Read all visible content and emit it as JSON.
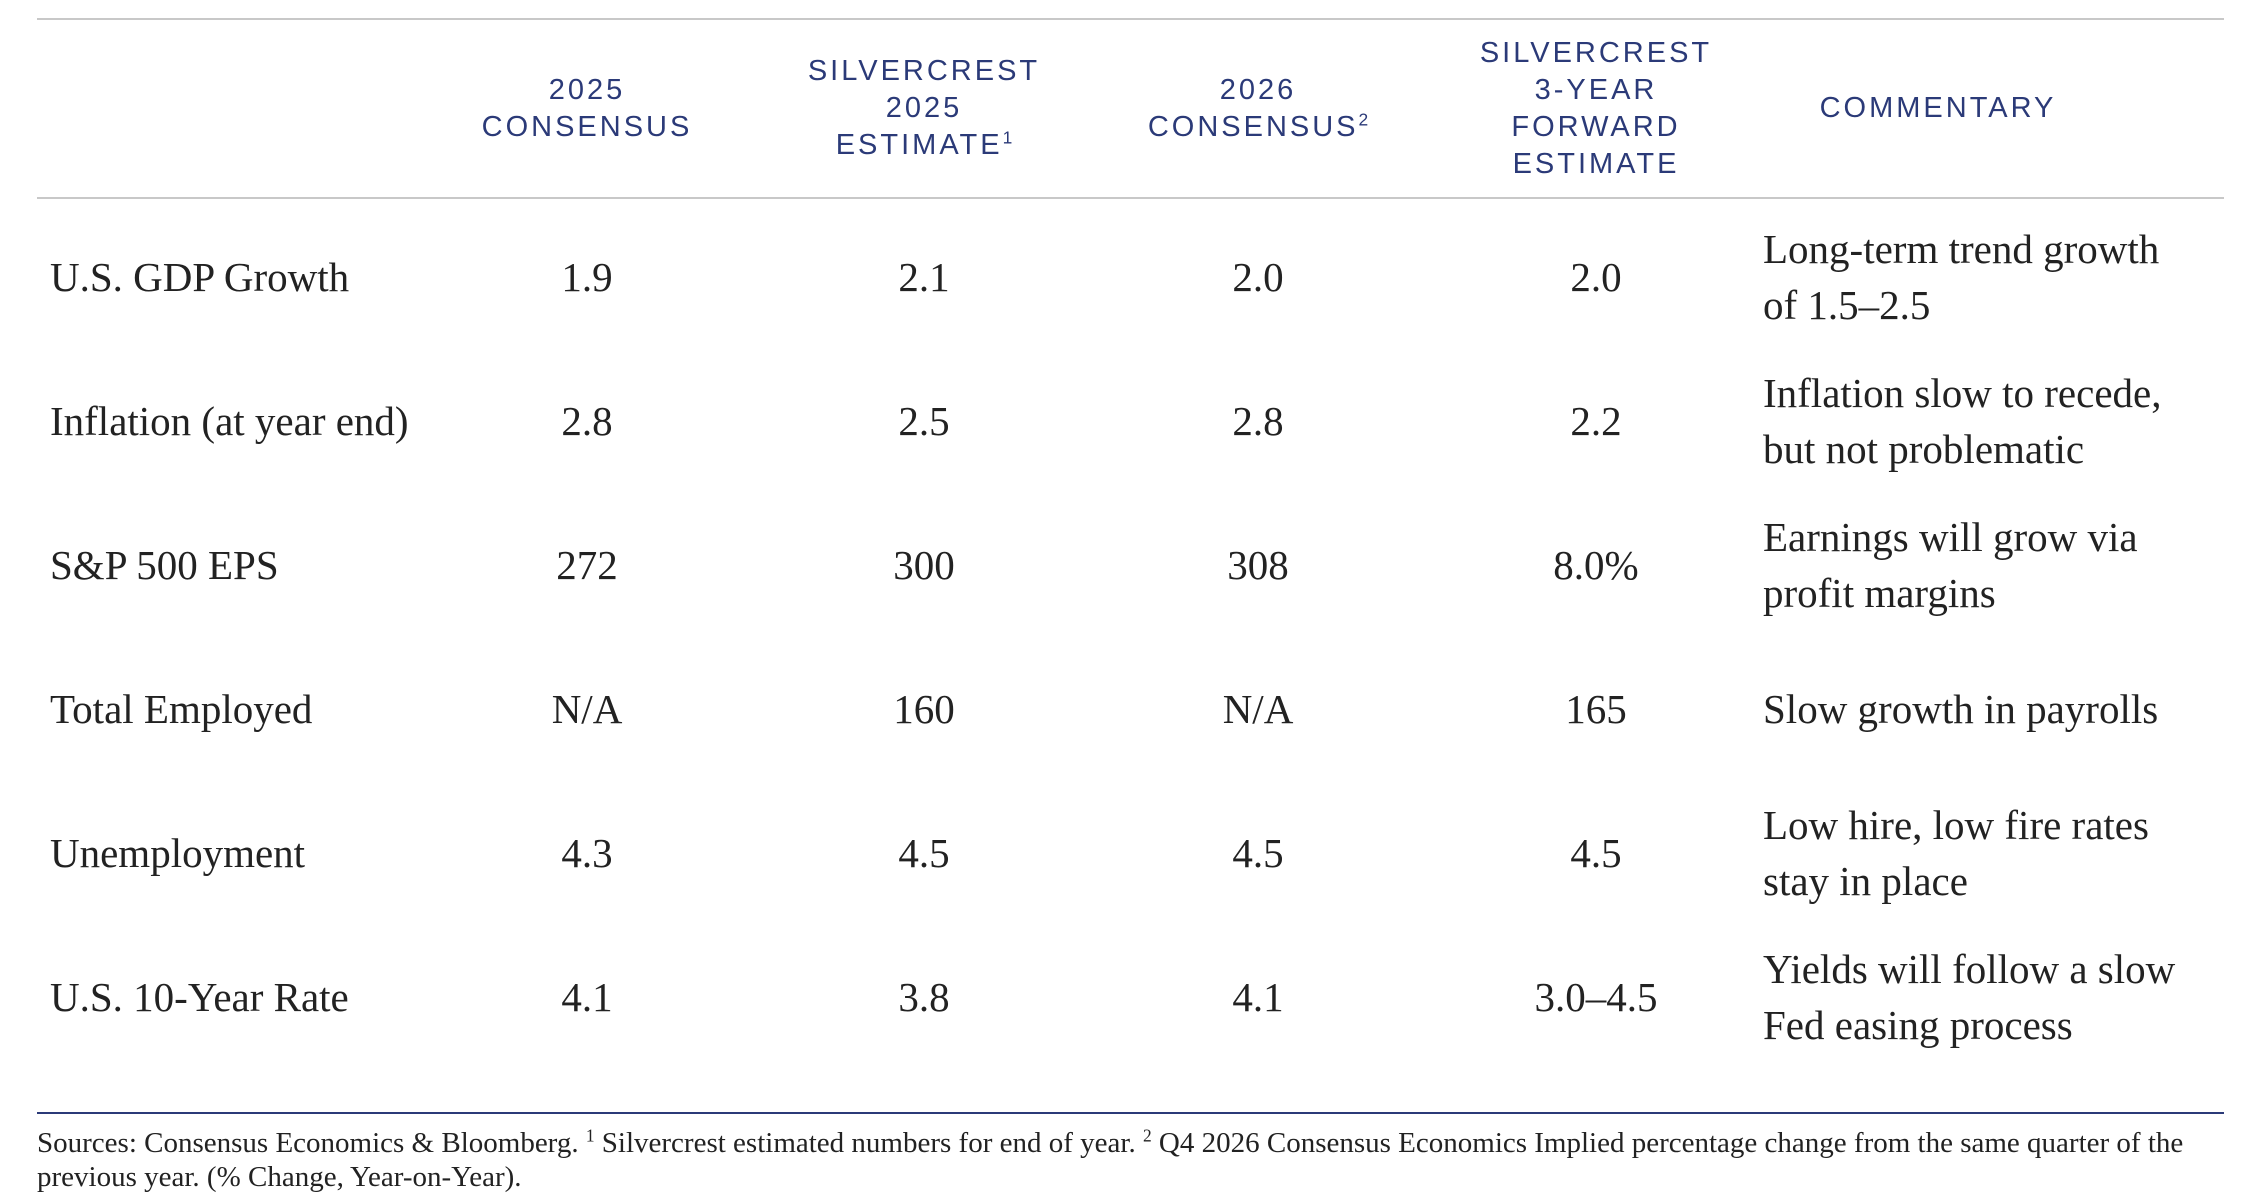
{
  "table": {
    "headers": [
      {
        "lines": [
          "2025",
          "CONSENSUS"
        ]
      },
      {
        "lines": [
          "SILVERCREST",
          "2025",
          "ESTIMATE"
        ],
        "sup": "1"
      },
      {
        "lines": [
          "2026",
          "CONSENSUS"
        ],
        "sup": "2"
      },
      {
        "lines": [
          "SILVERCREST",
          "3-YEAR",
          "FORWARD",
          "ESTIMATE"
        ]
      },
      {
        "lines": [
          "COMMENTARY"
        ]
      }
    ],
    "rows": [
      {
        "label": "U.S. GDP Growth",
        "values": [
          "1.9",
          "2.1",
          "2.0",
          "2.0"
        ],
        "commentary": [
          "Long-term trend growth",
          "of 1.5–2.5"
        ]
      },
      {
        "label": "Inflation (at year end)",
        "values": [
          "2.8",
          "2.5",
          "2.8",
          "2.2"
        ],
        "commentary": [
          "Inflation slow to recede,",
          "but not problematic"
        ]
      },
      {
        "label": "S&P 500 EPS",
        "values": [
          "272",
          "300",
          "308",
          "8.0%"
        ],
        "commentary": [
          "Earnings will grow via",
          "profit margins"
        ]
      },
      {
        "label": "Total Employed",
        "values": [
          "N/A",
          "160",
          "N/A",
          "165"
        ],
        "commentary": [
          "Slow growth in payrolls"
        ]
      },
      {
        "label": "Unemployment",
        "values": [
          "4.3",
          "4.5",
          "4.5",
          "4.5"
        ],
        "commentary": [
          "Low hire, low fire rates",
          "stay in place"
        ]
      },
      {
        "label": "U.S. 10-Year Rate",
        "values": [
          "4.1",
          "3.8",
          "4.1",
          "3.0–4.5"
        ],
        "commentary": [
          "Yields will follow a slow",
          "Fed easing process"
        ]
      }
    ]
  },
  "footnote": [
    {
      "text": "Sources: Consensus Economics & Bloomberg. "
    },
    {
      "sup": "1"
    },
    {
      "text": " Silvercrest estimated numbers for end of year. "
    },
    {
      "sup": "2"
    },
    {
      "text": " Q4 2026 Consensus Economics Implied percentage change from the same quarter of the previous year. (% Change, Year-on-Year)."
    }
  ]
}
